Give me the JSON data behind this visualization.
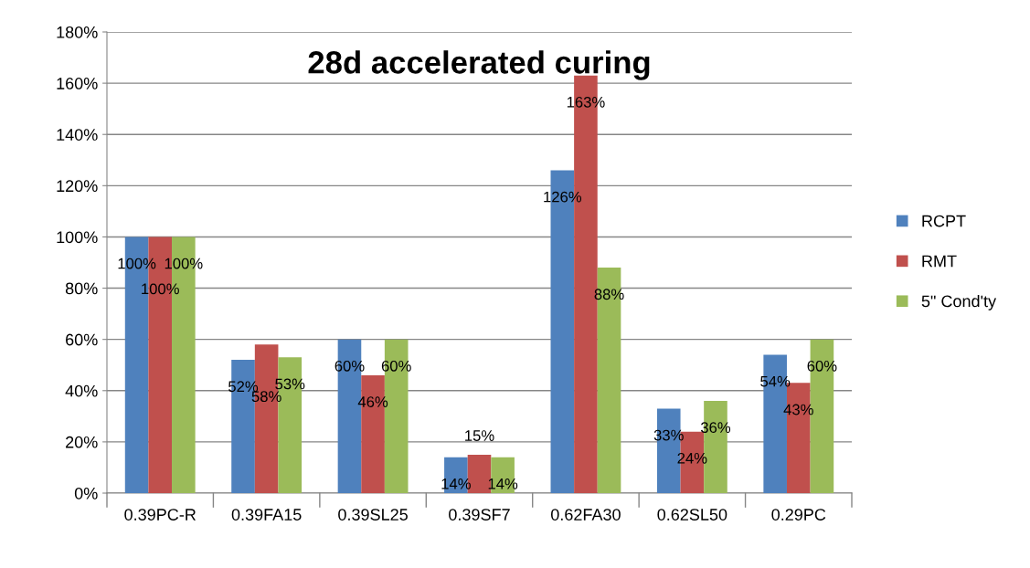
{
  "chart_data": {
    "type": "bar",
    "title": "28d accelerated curing",
    "categories": [
      "0.39PC-R",
      "0.39FA15",
      "0.39SL25",
      "0.39SF7",
      "0.62FA30",
      "0.62SL50",
      "0.29PC"
    ],
    "series": [
      {
        "name": "RCPT",
        "color": "#4f81bd",
        "values": [
          100,
          52,
          60,
          14,
          126,
          33,
          54
        ],
        "value_labels": [
          "100%",
          "52%",
          "60%",
          "14%",
          "126%",
          "33%",
          "54%"
        ]
      },
      {
        "name": "RMT",
        "color": "#c0504d",
        "values": [
          100,
          58,
          46,
          15,
          163,
          24,
          43
        ],
        "value_labels": [
          "100%",
          "58%",
          "46%",
          "15%",
          "163%",
          "24%",
          "43%"
        ]
      },
      {
        "name": "5\" Cond'ty",
        "color": "#9bbb59",
        "values": [
          100,
          53,
          60,
          14,
          88,
          36,
          60
        ],
        "value_labels": [
          "100%",
          "53%",
          "60%",
          "14%",
          "88%",
          "36%",
          "60%"
        ]
      }
    ],
    "ylim": [
      0,
      180
    ],
    "yticks": [
      {
        "value": 0,
        "label": "0%"
      },
      {
        "value": 20,
        "label": "20%"
      },
      {
        "value": 40,
        "label": "40%"
      },
      {
        "value": 60,
        "label": "60%"
      },
      {
        "value": 80,
        "label": "80%"
      },
      {
        "value": 100,
        "label": "100%"
      },
      {
        "value": 120,
        "label": "120%"
      },
      {
        "value": 140,
        "label": "140%"
      },
      {
        "value": 160,
        "label": "160%"
      },
      {
        "value": 180,
        "label": "180%"
      }
    ],
    "grid": "y",
    "legend": "right"
  }
}
